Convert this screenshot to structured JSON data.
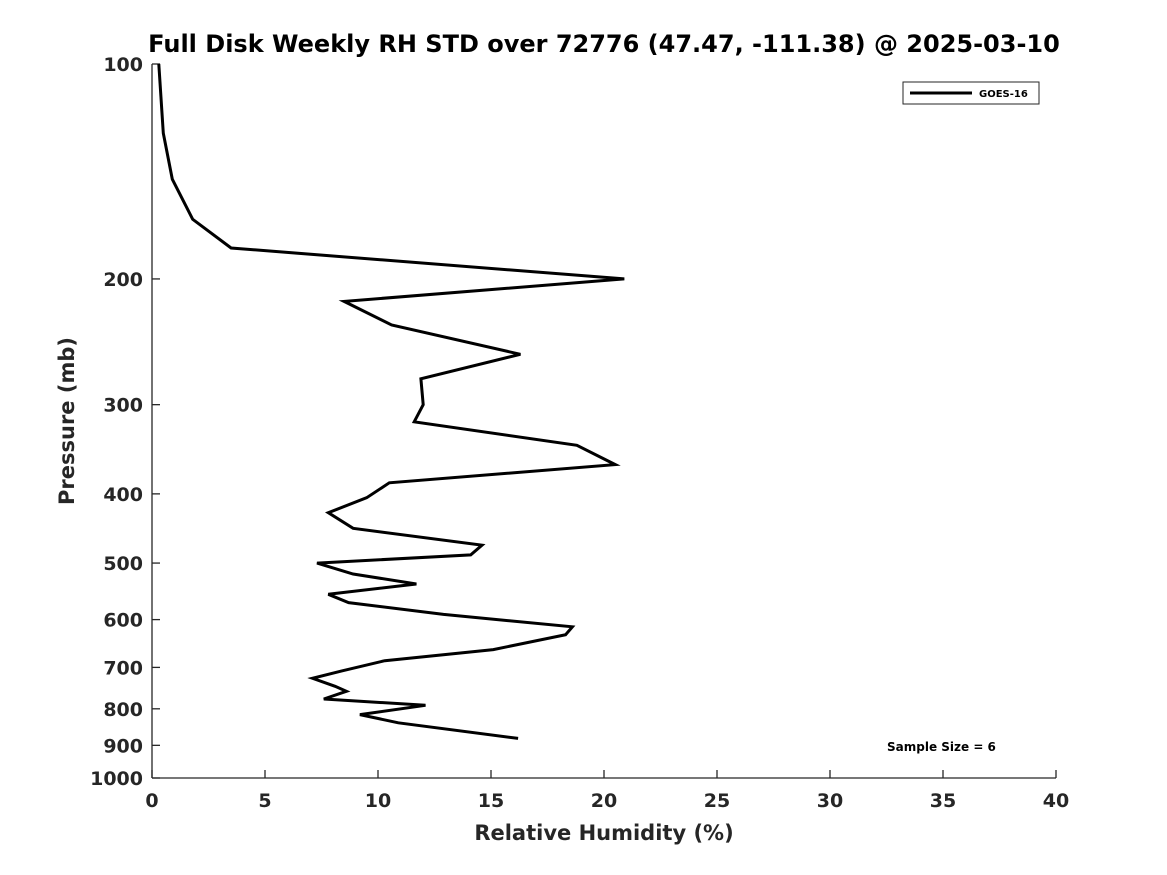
{
  "chart_data": {
    "type": "line",
    "title": "Full Disk Weekly RH STD over 72776 (47.47, -111.38) @ 2025-03-10",
    "xlabel": "Relative Humidity (%)",
    "ylabel": "Pressure (mb)",
    "xlim": [
      0,
      40
    ],
    "ylim": [
      100,
      1000
    ],
    "yscale": "log",
    "y_reversed": true,
    "grid": false,
    "legend_position": "top-right",
    "xticks": [
      0,
      5,
      10,
      15,
      20,
      25,
      30,
      35,
      40
    ],
    "xtick_labels": [
      "0",
      "5",
      "10",
      "15",
      "20",
      "25",
      "30",
      "35",
      "40"
    ],
    "yticks": [
      100,
      200,
      300,
      400,
      500,
      600,
      700,
      800,
      900,
      1000
    ],
    "ytick_labels": [
      "100",
      "200",
      "300",
      "400",
      "500",
      "600",
      "700",
      "800",
      "900",
      "1000"
    ],
    "series": [
      {
        "name": "GOES-16",
        "color": "#000000",
        "x": [
          0.3,
          0.5,
          0.9,
          1.8,
          3.5,
          20.9,
          8.5,
          10.6,
          16.3,
          11.9,
          12.0,
          11.6,
          18.8,
          20.5,
          10.5,
          9.5,
          7.8,
          8.9,
          14.6,
          14.1,
          7.3,
          8.9,
          11.7,
          7.8,
          8.7,
          12.9,
          18.6,
          18.3,
          15.1,
          10.3,
          8.4,
          7.1,
          8.1,
          8.6,
          7.6,
          12.1,
          9.2,
          10.9,
          16.2
        ],
        "y": [
          100,
          125,
          145,
          165,
          181,
          200,
          215,
          232,
          255,
          276,
          300,
          317,
          342,
          364,
          386,
          405,
          425,
          447,
          472,
          487,
          500,
          518,
          535,
          553,
          568,
          590,
          614,
          630,
          661,
          685,
          708,
          725,
          744,
          756,
          775,
          791,
          815,
          837,
          880
        ]
      }
    ],
    "annotations": [
      {
        "text": "Sample Size = 6"
      }
    ]
  }
}
